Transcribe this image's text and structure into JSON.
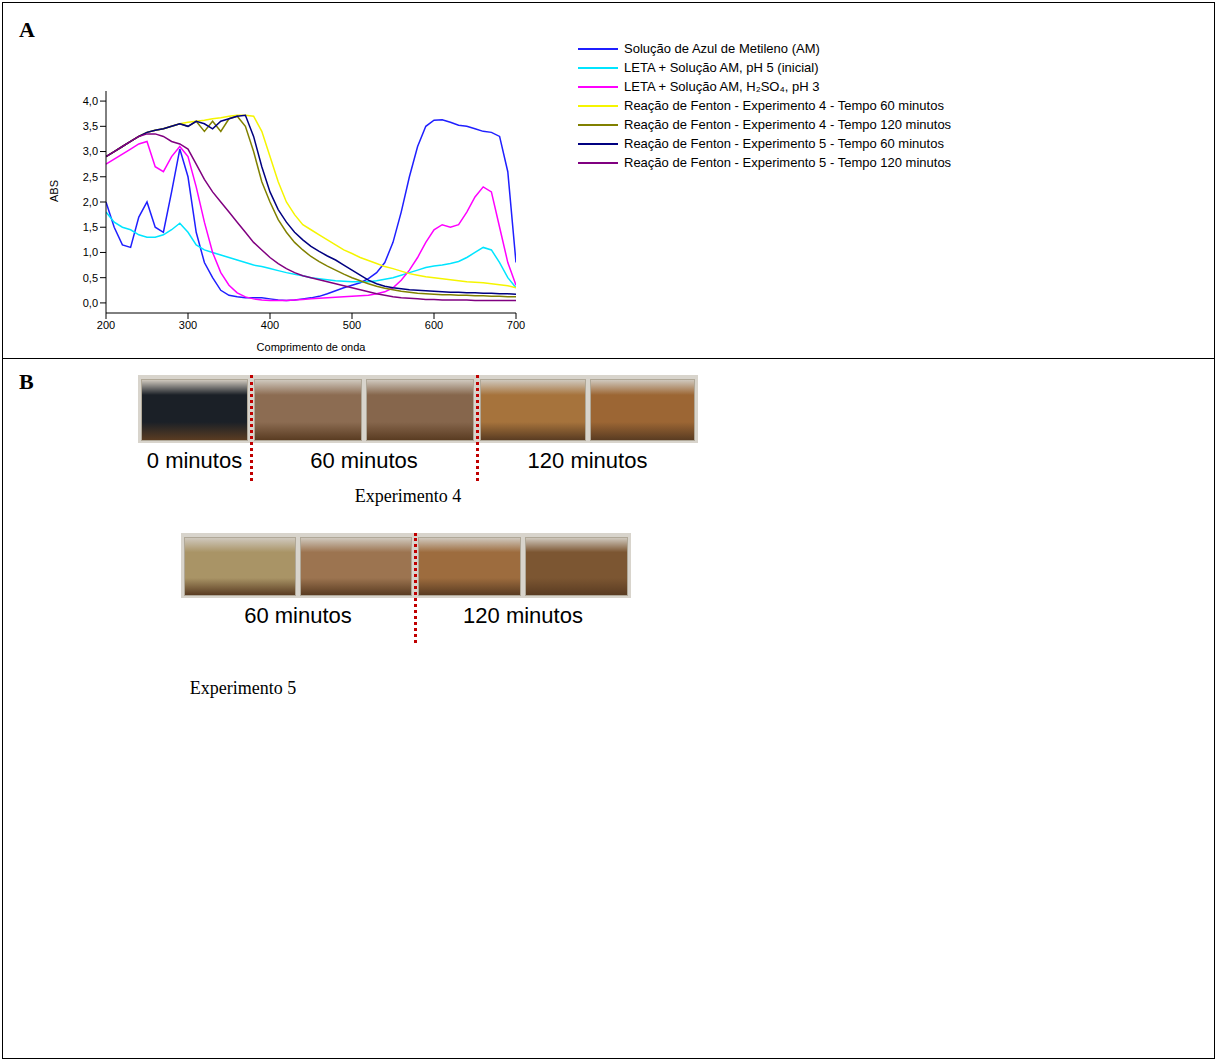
{
  "chart_data": {
    "type": "line",
    "panel": "A",
    "x_label": "Comprimento de onda",
    "y_label": "ABS",
    "legend": "right",
    "grid": false,
    "xlim": [
      200,
      700
    ],
    "xticks": [
      200,
      300,
      400,
      500,
      600,
      700
    ],
    "ylim": [
      -0.2,
      4.2
    ],
    "yticks": [
      {
        "value": 0,
        "label": "0,0"
      },
      {
        "value": 0.5,
        "label": "0,5"
      },
      {
        "value": 1,
        "label": "1,0"
      },
      {
        "value": 1.5,
        "label": "1,5"
      },
      {
        "value": 2,
        "label": "2,0"
      },
      {
        "value": 2.5,
        "label": "2,5"
      },
      {
        "value": 3,
        "label": "3,0"
      },
      {
        "value": 3.5,
        "label": "3,5"
      },
      {
        "value": 4,
        "label": "4,0"
      }
    ],
    "x": [
      200,
      210,
      220,
      230,
      240,
      250,
      260,
      270,
      280,
      290,
      300,
      310,
      320,
      330,
      340,
      350,
      360,
      370,
      380,
      390,
      400,
      410,
      420,
      430,
      440,
      450,
      460,
      470,
      480,
      490,
      500,
      510,
      520,
      530,
      540,
      550,
      560,
      570,
      580,
      590,
      600,
      610,
      620,
      630,
      640,
      650,
      660,
      670,
      680,
      690,
      700
    ],
    "series": [
      {
        "name": "Solução de Azul de Metileno (AM)",
        "color": "#1f1fff",
        "values": [
          2.0,
          1.5,
          1.15,
          1.1,
          1.7,
          2.0,
          1.5,
          1.4,
          2.2,
          3.05,
          2.5,
          1.4,
          0.8,
          0.5,
          0.25,
          0.15,
          0.12,
          0.1,
          0.1,
          0.1,
          0.08,
          0.06,
          0.05,
          0.06,
          0.08,
          0.1,
          0.13,
          0.18,
          0.24,
          0.3,
          0.35,
          0.4,
          0.48,
          0.6,
          0.8,
          1.2,
          1.8,
          2.5,
          3.1,
          3.5,
          3.62,
          3.63,
          3.58,
          3.52,
          3.5,
          3.45,
          3.4,
          3.38,
          3.3,
          2.6,
          0.8
        ]
      },
      {
        "name": "LETA + Solução AM, pH 5 (inicial)",
        "color": "#00e5ff",
        "values": [
          1.8,
          1.6,
          1.5,
          1.45,
          1.35,
          1.3,
          1.3,
          1.35,
          1.45,
          1.58,
          1.4,
          1.15,
          1.05,
          1.0,
          0.95,
          0.9,
          0.85,
          0.8,
          0.75,
          0.72,
          0.68,
          0.64,
          0.6,
          0.57,
          0.54,
          0.5,
          0.48,
          0.46,
          0.44,
          0.43,
          0.42,
          0.42,
          0.42,
          0.44,
          0.47,
          0.5,
          0.55,
          0.6,
          0.65,
          0.7,
          0.73,
          0.75,
          0.78,
          0.82,
          0.9,
          1.0,
          1.1,
          1.05,
          0.8,
          0.5,
          0.3
        ]
      },
      {
        "name": "LETA + Solução AM, H₂SO₄, pH 3",
        "color": "#ff00ff",
        "values": [
          2.75,
          2.85,
          2.95,
          3.05,
          3.15,
          3.2,
          2.7,
          2.6,
          2.9,
          3.1,
          2.9,
          2.3,
          1.6,
          1.0,
          0.6,
          0.35,
          0.2,
          0.12,
          0.08,
          0.06,
          0.05,
          0.05,
          0.05,
          0.06,
          0.07,
          0.08,
          0.09,
          0.1,
          0.11,
          0.12,
          0.13,
          0.14,
          0.15,
          0.18,
          0.22,
          0.3,
          0.45,
          0.65,
          0.9,
          1.2,
          1.45,
          1.55,
          1.5,
          1.55,
          1.8,
          2.1,
          2.3,
          2.2,
          1.5,
          0.8,
          0.35
        ]
      },
      {
        "name": "Reação de Fenton - Experimento 4 - Tempo 60 minutos",
        "color": "#f5f500",
        "values": [
          2.9,
          3.0,
          3.1,
          3.2,
          3.3,
          3.38,
          3.42,
          3.45,
          3.5,
          3.55,
          3.58,
          3.6,
          3.62,
          3.65,
          3.67,
          3.7,
          3.72,
          3.72,
          3.7,
          3.4,
          2.9,
          2.4,
          2.0,
          1.75,
          1.55,
          1.45,
          1.35,
          1.25,
          1.15,
          1.05,
          0.98,
          0.9,
          0.84,
          0.78,
          0.72,
          0.68,
          0.63,
          0.58,
          0.55,
          0.52,
          0.5,
          0.48,
          0.46,
          0.44,
          0.42,
          0.41,
          0.4,
          0.38,
          0.36,
          0.34,
          0.3
        ]
      },
      {
        "name": "Reação de Fenton - Experimento 4 - Tempo 120 minutos",
        "color": "#808000",
        "values": [
          2.9,
          3.0,
          3.1,
          3.2,
          3.3,
          3.38,
          3.42,
          3.45,
          3.5,
          3.55,
          3.5,
          3.6,
          3.4,
          3.6,
          3.4,
          3.65,
          3.7,
          3.5,
          3.0,
          2.4,
          2.0,
          1.65,
          1.4,
          1.2,
          1.05,
          0.92,
          0.82,
          0.73,
          0.65,
          0.57,
          0.5,
          0.44,
          0.38,
          0.33,
          0.29,
          0.26,
          0.23,
          0.21,
          0.19,
          0.18,
          0.17,
          0.16,
          0.16,
          0.15,
          0.15,
          0.14,
          0.14,
          0.13,
          0.13,
          0.12,
          0.12
        ]
      },
      {
        "name": "Reação de Fenton - Experimento 5 - Tempo 60 minutos",
        "color": "#000080",
        "values": [
          2.9,
          3.0,
          3.1,
          3.2,
          3.3,
          3.38,
          3.42,
          3.45,
          3.5,
          3.55,
          3.5,
          3.6,
          3.55,
          3.45,
          3.6,
          3.65,
          3.7,
          3.72,
          3.3,
          2.7,
          2.2,
          1.85,
          1.6,
          1.4,
          1.25,
          1.12,
          1.02,
          0.93,
          0.85,
          0.75,
          0.65,
          0.55,
          0.45,
          0.38,
          0.33,
          0.3,
          0.28,
          0.26,
          0.25,
          0.24,
          0.23,
          0.22,
          0.21,
          0.21,
          0.2,
          0.2,
          0.19,
          0.19,
          0.18,
          0.18,
          0.17
        ]
      },
      {
        "name": "Reação de Fenton - Experimento 5 - Tempo 120 minutos",
        "color": "#800080",
        "values": [
          2.9,
          3.0,
          3.1,
          3.2,
          3.3,
          3.35,
          3.35,
          3.3,
          3.2,
          3.15,
          3.05,
          2.75,
          2.45,
          2.2,
          2.0,
          1.8,
          1.6,
          1.4,
          1.2,
          1.05,
          0.9,
          0.78,
          0.68,
          0.6,
          0.54,
          0.5,
          0.46,
          0.42,
          0.38,
          0.34,
          0.3,
          0.26,
          0.22,
          0.18,
          0.15,
          0.12,
          0.1,
          0.09,
          0.08,
          0.07,
          0.07,
          0.06,
          0.06,
          0.06,
          0.06,
          0.05,
          0.05,
          0.05,
          0.05,
          0.05,
          0.05
        ]
      }
    ]
  },
  "panel_b": {
    "panel": "B",
    "experiments": [
      {
        "title": "Experimento 4",
        "times": [
          "0 minutos",
          "60 minutos",
          "120 minutos"
        ]
      },
      {
        "title": "Experimento 5",
        "times": [
          "60 minutos",
          "120 minutos"
        ]
      }
    ]
  }
}
